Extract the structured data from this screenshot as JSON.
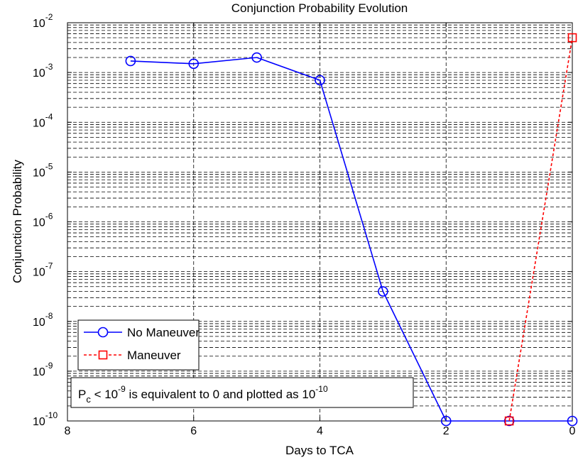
{
  "chart_data": {
    "type": "line",
    "title": "Conjunction Probability Evolution",
    "xlabel": "Days to TCA",
    "ylabel": "Conjunction Probability",
    "xlim": [
      8,
      0
    ],
    "x_reversed": true,
    "ylim": [
      1e-10,
      0.01
    ],
    "yscale": "log",
    "grid": true,
    "legend_position": "lower-left",
    "x_ticks": [
      8,
      6,
      4,
      2,
      0
    ],
    "x_tick_labels": [
      "8",
      "6",
      "4",
      "2",
      "0"
    ],
    "y_tick_exponents": [
      -2,
      -3,
      -4,
      -5,
      -6,
      -7,
      -8,
      -9,
      -10
    ],
    "y_tick_base": "10",
    "series": [
      {
        "name": "No Maneuver",
        "color": "#0000ff",
        "line_style": "solid",
        "marker": "circle",
        "x": [
          7,
          6,
          5,
          4,
          3,
          2,
          1,
          0
        ],
        "y": [
          0.0017,
          0.0015,
          0.002,
          0.0007,
          4e-08,
          1e-10,
          1e-10,
          1e-10
        ]
      },
      {
        "name": "Maneuver",
        "color": "#ff0000",
        "line_style": "dashed",
        "marker": "square",
        "x": [
          1,
          0
        ],
        "y": [
          1e-10,
          0.005
        ]
      }
    ],
    "annotation": {
      "p_letter": "P",
      "p_subscript": "c",
      "text_lt": " < 10",
      "exp_a": "-9",
      "text_mid": " is equivalent to 0 and plotted as 10",
      "exp_b": "-10"
    }
  }
}
